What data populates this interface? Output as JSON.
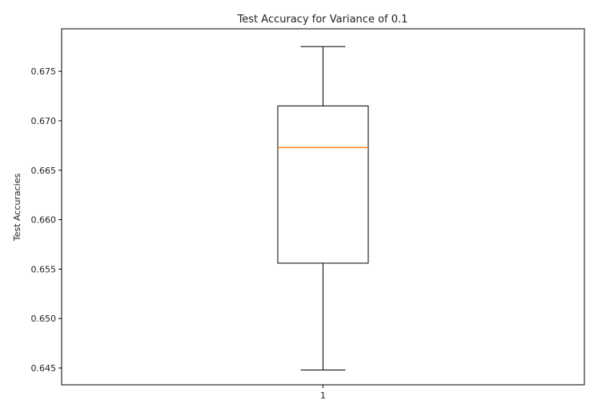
{
  "chart_data": {
    "type": "boxplot",
    "title": "Test Accuracy for Variance of 0.1",
    "xlabel": "",
    "ylabel": "Test Accuracies",
    "categories": [
      "1"
    ],
    "boxes": [
      {
        "category": "1",
        "whisker_low": 0.6448,
        "q1": 0.6556,
        "median": 0.6673,
        "q3": 0.6715,
        "whisker_high": 0.6775
      }
    ],
    "ylim": [
      0.6433,
      0.6793
    ],
    "yticks": [
      "0.645",
      "0.650",
      "0.655",
      "0.660",
      "0.665",
      "0.670",
      "0.675"
    ],
    "grid": false,
    "colors": {
      "box": "#000000",
      "median": "#ff7f0e",
      "axes": "#000000"
    }
  }
}
